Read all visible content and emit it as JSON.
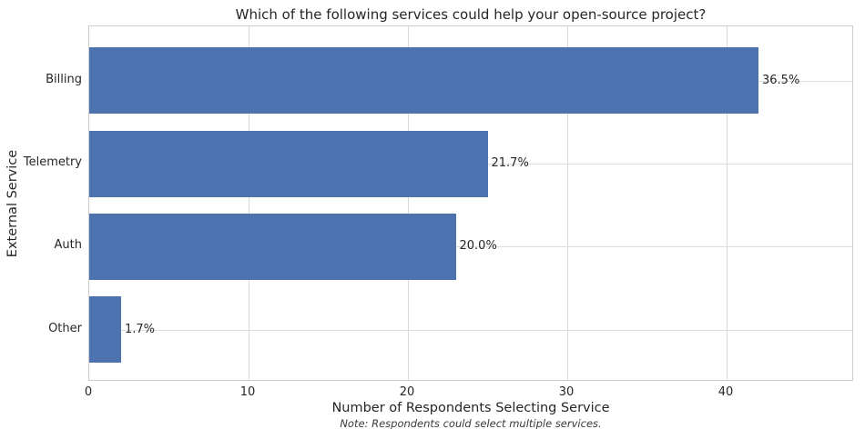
{
  "chart_data": {
    "type": "bar",
    "orientation": "horizontal",
    "title": "Which of the following services could help your open-source project?",
    "xlabel": "Number of Respondents Selecting Service",
    "ylabel": "External Service",
    "note": "Note: Respondents could select multiple services.",
    "categories": [
      "Billing",
      "Telemetry",
      "Auth",
      "Other"
    ],
    "values": [
      42,
      25,
      23,
      2
    ],
    "value_labels": [
      "36.5%",
      "21.7%",
      "20.0%",
      "1.7%"
    ],
    "xticks": [
      0,
      10,
      20,
      30,
      40
    ],
    "xlim": [
      0,
      48
    ],
    "grid": true,
    "legend": null,
    "bar_color": "#4C72B0",
    "background_color": "#ffffff",
    "grid_color": "#d9d9d9",
    "text_color": "#262626"
  }
}
